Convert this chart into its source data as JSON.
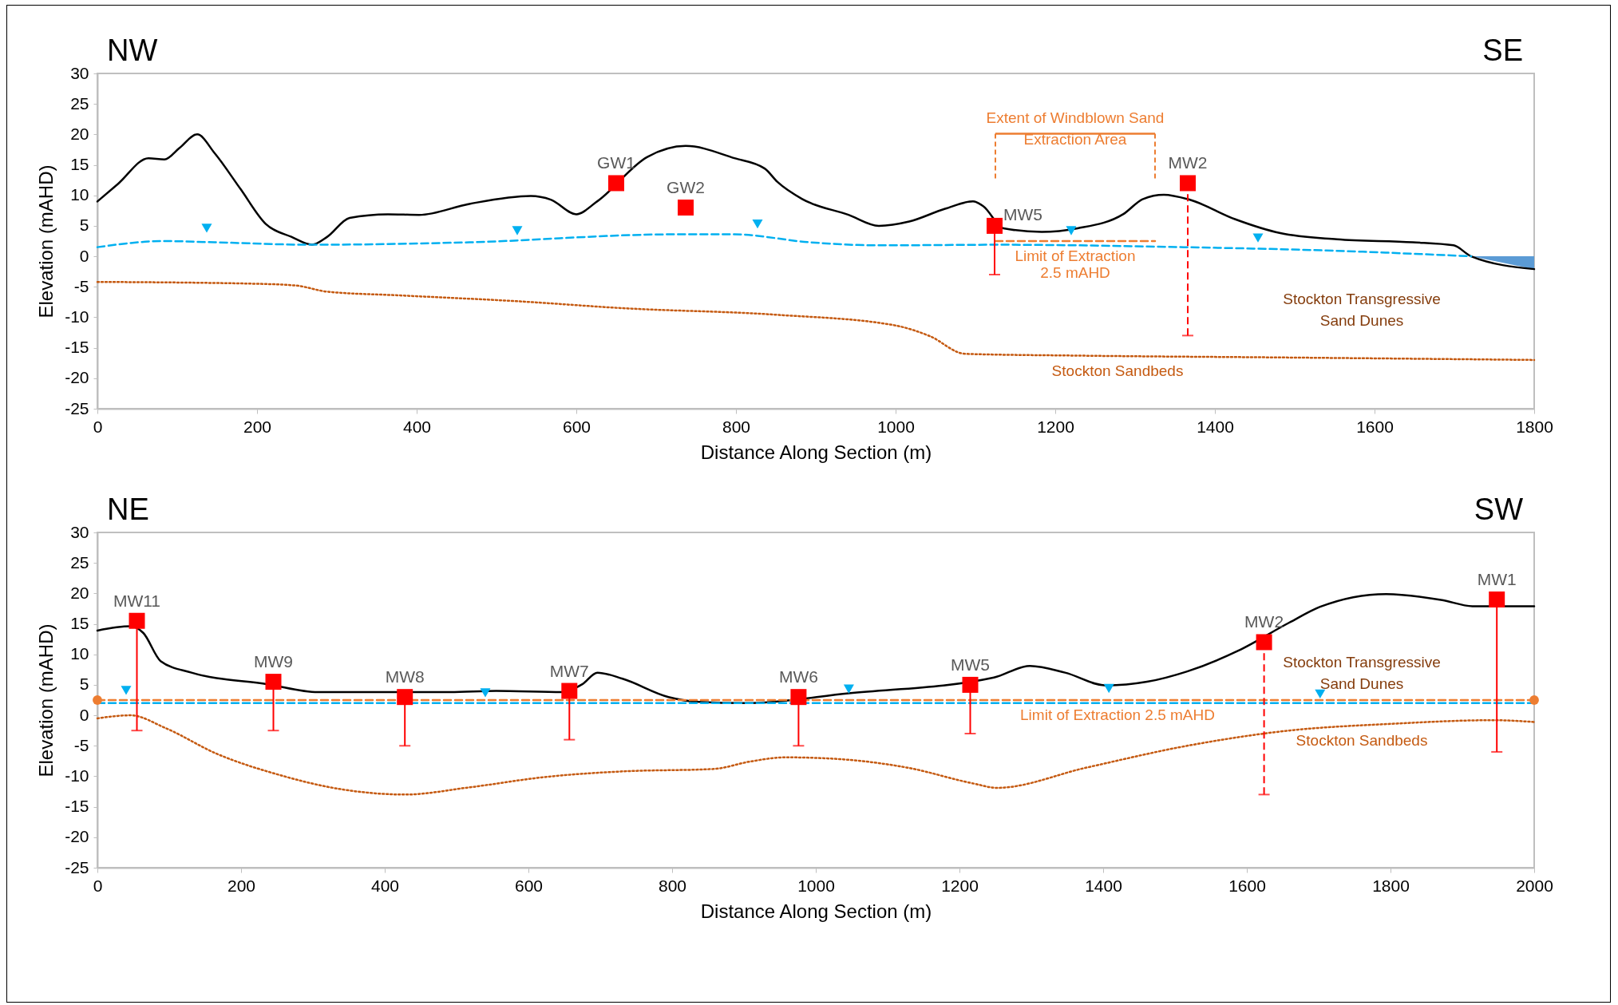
{
  "chart_data": [
    {
      "type": "line",
      "xlabel": "Distance Along Section (m)",
      "ylabel": "Elevation (mAHD)",
      "xlim": [
        0,
        1800
      ],
      "ylim": [
        -25,
        30
      ],
      "xticks": [
        0,
        200,
        400,
        600,
        800,
        1000,
        1200,
        1400,
        1600,
        1800
      ],
      "yticks": [
        -25,
        -20,
        -15,
        -10,
        -5,
        0,
        5,
        10,
        15,
        20,
        25,
        30
      ],
      "grid": false,
      "series": [
        {
          "type": "area",
          "color": "#5b9bd5",
          "x": [
            1721,
            1800
          ],
          "values": [
            0,
            -2.1
          ]
        },
        {
          "color": "#000000",
          "line_style": "solid",
          "marker": "none",
          "x": [
            0,
            26,
            64,
            84,
            103,
            125,
            147,
            179,
            211,
            243,
            269,
            288,
            316,
            364,
            403,
            466,
            543,
            568,
            600,
            626,
            650,
            689,
            737,
            798,
            836,
            852,
            883,
            941,
            979,
            1017,
            1062,
            1097,
            1110,
            1119,
            1135,
            1183,
            1228,
            1285,
            1310,
            1336,
            1368,
            1425,
            1482,
            1553,
            1648,
            1699,
            1721,
            1800
          ],
          "values": [
            9,
            11.9,
            16.1,
            15.9,
            17.8,
            20,
            16.9,
            11.1,
            5.3,
            3.2,
            1.9,
            3.2,
            6.3,
            6.9,
            6.8,
            8.6,
            9.9,
            9.3,
            6.9,
            9,
            null,
            16.3,
            18.1,
            16.1,
            14.4,
            12.2,
            9.4,
            6.8,
            5,
            5.7,
            7.8,
            9,
            8.2,
            null,
            4.6,
            4,
            4.6,
            6.9,
            9.4,
            10.1,
            9.3,
            6.1,
            3.8,
            2.8,
            2.3,
            1.8,
            0,
            -2.1
          ]
        },
        {
          "color": "#00b0f0",
          "line_style": "dashed",
          "marker": "none",
          "x": [
            0,
            84,
            147,
            269,
            466,
            721,
            798,
            892,
            979,
            1126,
            1361,
            1553,
            1721
          ],
          "values": [
            1.5,
            2.5,
            2.3,
            1.9,
            2.3,
            3.6,
            3.6,
            2.3,
            1.8,
            1.9,
            1.5,
            0.9,
            0
          ]
        },
        {
          "name": "Limit of Extraction 2.5 mAHD",
          "color": "#ed7d31",
          "line_style": "dashed",
          "marker": "none",
          "x": [
            1125,
            1325
          ],
          "values": [
            2.5,
            2.5
          ]
        },
        {
          "name": "Stockton Sandbeds",
          "color": "#c55a11",
          "line_style": "dotted",
          "marker": "none",
          "x": [
            0,
            198,
            249,
            288,
            377,
            530,
            657,
            852,
            998,
            1043,
            1087,
            1234,
            1489,
            1800
          ],
          "values": [
            -4.2,
            -4.5,
            -4.8,
            -5.8,
            -6.4,
            -7.4,
            -8.5,
            -9.6,
            -11.3,
            -13.1,
            -16,
            -16.3,
            -16.6,
            -17
          ]
        },
        {
          "type": "scatter",
          "color": "#00b0f0",
          "marker": "triangle",
          "x": [
            137,
            526,
            827,
            1220,
            1454
          ],
          "values": [
            4.6,
            4.2,
            5.3,
            4.2,
            3
          ]
        },
        {
          "type": "scatter",
          "color": "#ff0000",
          "marker": "square",
          "line_style": "solid",
          "x": [
            650,
            737,
            1124
          ],
          "values": [
            12,
            8,
            5
          ],
          "errors": [
            null,
            null,
            [
              -3,
              5
            ]
          ]
        },
        {
          "type": "scatter",
          "color": "#ff0000",
          "marker": "square",
          "line_style": "dashed",
          "x": [
            1366
          ],
          "values": [
            12
          ],
          "errors": [
            [
              -13,
              12
            ]
          ]
        }
      ],
      "annotations": [
        "NW",
        "SE",
        "Extent of Windblown Sand Extraction Area",
        {
          "text": "GW1",
          "x": 650,
          "y": 12
        },
        {
          "text": "GW2",
          "x": 737,
          "y": 8
        },
        {
          "text": "MW5",
          "x": 1135,
          "y": 6.7
        },
        {
          "text": "MW2",
          "x": 1366,
          "y": 12
        },
        "Stockton Transgressive Sand Dunes"
      ]
    },
    {
      "type": "line",
      "xlabel": "Distance Along Section (m)",
      "ylabel": "Elevation (mAHD)",
      "xlim": [
        0,
        2000
      ],
      "ylim": [
        -25,
        30
      ],
      "xticks": [
        0,
        200,
        400,
        600,
        800,
        1000,
        1200,
        1400,
        1600,
        1800,
        2000
      ],
      "yticks": [
        -25,
        -20,
        -15,
        -10,
        -5,
        0,
        5,
        10,
        15,
        20,
        25,
        30
      ],
      "grid": false,
      "series": [
        {
          "color": "#000000",
          "line_style": "solid",
          "marker": "none",
          "x": [
            0,
            46,
            64,
            88,
            131,
            237,
            307,
            428,
            491,
            555,
            647,
            675,
            696,
            731,
            795,
            837,
            901,
            972,
            1046,
            1215,
            1248,
            1298,
            1347,
            1404,
            1461,
            1517,
            1588,
            1659,
            1702,
            1794,
            1872,
            1914,
            2000
          ],
          "values": [
            13.9,
            14.6,
            13.5,
            8.9,
            7,
            5.1,
            3.8,
            null,
            3.8,
            4,
            3.8,
            5.1,
            7,
            6,
            3,
            2.2,
            2,
            null,
            3.6,
            null,
            6.2,
            8.1,
            7,
            4.9,
            5.5,
            7.2,
            10.6,
            15.2,
            17.8,
            19.9,
            18.9,
            17.9,
            17.9
          ]
        },
        {
          "color": "#00b0f0",
          "line_style": "dashed",
          "marker": "none",
          "x": [
            0,
            2000
          ],
          "values": [
            2,
            2
          ]
        },
        {
          "name": "Limit of Extraction 2.5 mAHD",
          "color": "#ed7d31",
          "line_style": "dashed",
          "marker": "circle",
          "x": [
            0,
            2000
          ],
          "values": [
            2.5,
            2.5
          ]
        },
        {
          "name": "Stockton Sandbeds",
          "color": "#c55a11",
          "line_style": "dotted",
          "marker": "none",
          "x": [
            0,
            46,
            95,
            166,
            251,
            343,
            428,
            519,
            625,
            731,
            858,
            908,
            958,
            1021,
            1128,
            1220,
            1252,
            1376,
            1517,
            1659,
            1801,
            1943,
            2000
          ],
          "values": [
            -0.5,
            0,
            -2.1,
            -6.3,
            -9.7,
            -12.2,
            -13,
            -11.8,
            -10.1,
            -9.2,
            -8.8,
            -7.6,
            -6.9,
            -7.1,
            -8.6,
            -11.2,
            -11.9,
            -8.6,
            -5,
            -2.5,
            -1.4,
            -0.8,
            -1.1
          ]
        },
        {
          "type": "scatter",
          "color": "#00b0f0",
          "marker": "triangle",
          "x": [
            40,
            540,
            1046,
            1408,
            1702
          ],
          "values": [
            4.1,
            3.7,
            4.3,
            4.4,
            3.5
          ]
        },
        {
          "type": "scatter",
          "color": "#ff0000",
          "marker": "square",
          "line_style": "solid",
          "x": [
            55,
            245,
            428,
            657,
            976,
            1215,
            1948
          ],
          "values": [
            15.5,
            5.5,
            3,
            4,
            3,
            5,
            19
          ],
          "errors": [
            [
              -2.5,
              15.5
            ],
            [
              -2.5,
              5.5
            ],
            [
              -5,
              3
            ],
            [
              -4,
              4
            ],
            [
              -5,
              3
            ],
            [
              -3,
              5
            ],
            [
              -6,
              19
            ]
          ]
        },
        {
          "type": "scatter",
          "color": "#ff0000",
          "marker": "square",
          "line_style": "dashed",
          "x": [
            1624
          ],
          "values": [
            12
          ],
          "errors": [
            [
              -13,
              12
            ]
          ]
        }
      ],
      "annotations": [
        "NE",
        "SW",
        {
          "text": "MW11",
          "x": 55,
          "y": 15.5
        },
        {
          "text": "MW9",
          "x": 245,
          "y": 5.5
        },
        {
          "text": "MW8",
          "x": 428,
          "y": 3
        },
        {
          "text": "MW7",
          "x": 657,
          "y": 4
        },
        {
          "text": "MW6",
          "x": 976,
          "y": 3
        },
        {
          "text": "MW5",
          "x": 1215,
          "y": 5
        },
        {
          "text": "MW2",
          "x": 1624,
          "y": 12
        },
        {
          "text": "MW1",
          "x": 1948,
          "y": 19
        },
        "Stockton Transgressive Sand Dunes"
      ]
    }
  ]
}
